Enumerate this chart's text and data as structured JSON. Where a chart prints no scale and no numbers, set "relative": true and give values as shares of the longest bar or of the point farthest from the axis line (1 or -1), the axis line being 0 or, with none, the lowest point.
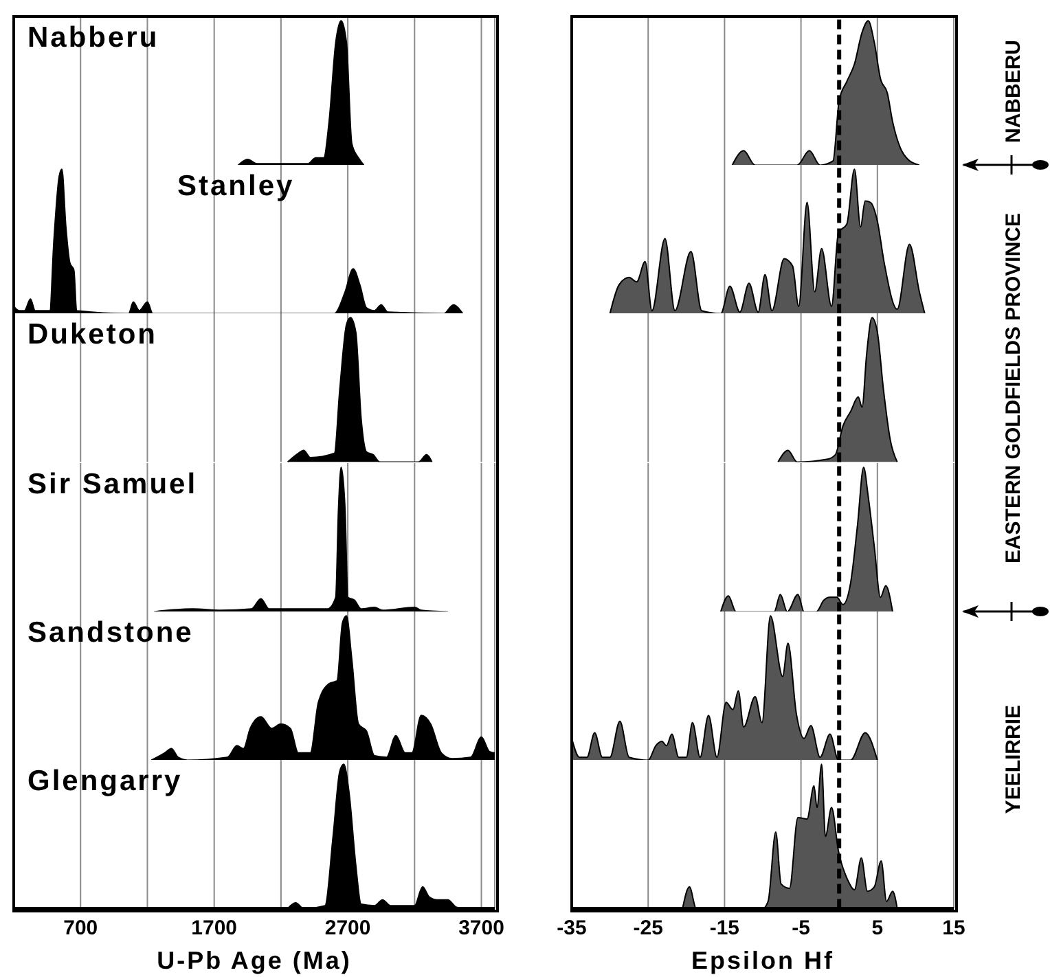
{
  "chart_data": [
    {
      "type": "area",
      "title": "Nabberu",
      "color": "#000000",
      "relative": true,
      "xlim": [
        200,
        3800
      ],
      "xticks": [
        700,
        {
          "value": 1200,
          "label": null
        },
        1700,
        {
          "value": 2200,
          "label": null
        },
        2700,
        {
          "value": 3200,
          "label": null
        },
        3700
      ],
      "grid": "x",
      "tick_labels": false,
      "x": [
        1880,
        1950,
        2020,
        2400,
        2460,
        2520,
        2560,
        2610,
        2650,
        2690,
        2730,
        2780,
        2820
      ],
      "values": [
        0,
        0.04,
        0.01,
        0.01,
        0.05,
        0.05,
        0.3,
        0.85,
        1,
        0.85,
        0.15,
        0.05,
        0
      ]
    },
    {
      "type": "area",
      "color": "#555555",
      "relative": true,
      "xlim": [
        -35,
        15
      ],
      "xticks": [
        -35,
        -25,
        -15,
        -5,
        5,
        15
      ],
      "grid": "x",
      "tick_labels": false,
      "ref_lines": [
        {
          "axis": "x",
          "value": 0,
          "color": "#000000",
          "line_style": "dashed"
        }
      ],
      "annotations": [
        "NABBERU"
      ],
      "x": [
        -14,
        -12.5,
        -11,
        -5.5,
        -3.9,
        -2.5,
        -0.8,
        0,
        1,
        2,
        3,
        3.8,
        4.6,
        5.4,
        6.3,
        7,
        8,
        9,
        10.5
      ],
      "values": [
        0,
        0.1,
        0,
        0,
        0.1,
        0,
        0.03,
        0.45,
        0.58,
        0.7,
        0.92,
        1,
        0.85,
        0.6,
        0.5,
        0.3,
        0.12,
        0.04,
        0
      ]
    },
    {
      "type": "area",
      "title": "Stanley",
      "color": "#000000",
      "relative": true,
      "xlim": [
        200,
        3800
      ],
      "xticks": [
        700,
        {
          "value": 1200,
          "label": null
        },
        1700,
        {
          "value": 2200,
          "label": null
        },
        2700,
        {
          "value": 3200,
          "label": null
        },
        3700
      ],
      "grid": "x",
      "tick_labels": false,
      "x": [
        200,
        240,
        280,
        325,
        360,
        470,
        500,
        540,
        560,
        590,
        620,
        650,
        670,
        1060,
        1095,
        1140,
        1200,
        1240,
        2600,
        2680,
        2740,
        2790,
        2840,
        2900,
        2950,
        3000,
        3420,
        3490,
        3560
      ],
      "values": [
        0.05,
        0.02,
        0.02,
        0.1,
        0.02,
        0.02,
        0.5,
        0.95,
        1,
        0.6,
        0.35,
        0.3,
        0.02,
        0,
        0.08,
        0.02,
        0.08,
        0,
        0,
        0.15,
        0.31,
        0.2,
        0.04,
        0.02,
        0.06,
        0.01,
        0,
        0.06,
        0
      ]
    },
    {
      "type": "area",
      "color": "#555555",
      "relative": true,
      "xlim": [
        -35,
        15
      ],
      "xticks": [
        -35,
        -25,
        -15,
        -5,
        5,
        15
      ],
      "grid": "x",
      "tick_labels": false,
      "ref_lines": [
        {
          "axis": "x",
          "value": 0,
          "color": "#000000",
          "line_style": "dashed"
        }
      ],
      "annotations": [
        "EASTERN GOLDFIELDS PROVINCE"
      ],
      "x": [
        -30,
        -28.8,
        -27.5,
        -26.5,
        -25.4,
        -24.5,
        -22.8,
        -21.5,
        -19.4,
        -18,
        -15.5,
        -14.3,
        -13,
        -11.8,
        -10.6,
        -9.7,
        -8.8,
        -7.2,
        -6.1,
        -5.3,
        -4.2,
        -3.2,
        -2.3,
        -1,
        -0.1,
        1,
        2,
        2.8,
        3.4,
        4.1,
        5,
        5.9,
        7.6,
        9.2,
        10.5,
        11.2
      ],
      "values": [
        0,
        0.2,
        0.25,
        0.22,
        0.36,
        0.02,
        0.52,
        0.02,
        0.43,
        0.02,
        0,
        0.19,
        0.01,
        0.21,
        0.01,
        0.27,
        0.02,
        0.38,
        0.33,
        0.05,
        0.77,
        0.15,
        0.45,
        0.05,
        0.56,
        0.62,
        1,
        0.6,
        0.78,
        0.77,
        0.64,
        0.35,
        0.03,
        0.48,
        0.15,
        0
      ]
    },
    {
      "type": "area",
      "title": "Duketon",
      "color": "#000000",
      "relative": true,
      "xlim": [
        200,
        3800
      ],
      "xticks": [
        700,
        {
          "value": 1200,
          "label": null
        },
        1700,
        {
          "value": 2200,
          "label": null
        },
        2700,
        {
          "value": 3200,
          "label": null
        },
        3700
      ],
      "grid": "x",
      "tick_labels": false,
      "x": [
        2250,
        2330,
        2370,
        2420,
        2600,
        2640,
        2690,
        2720,
        2760,
        2800,
        2840,
        2890,
        2940,
        3230,
        3290,
        3330
      ],
      "values": [
        0,
        0.06,
        0.08,
        0.03,
        0.06,
        0.5,
        0.95,
        1,
        0.9,
        0.3,
        0.07,
        0.05,
        0,
        0,
        0.05,
        0
      ]
    },
    {
      "type": "area",
      "color": "#555555",
      "relative": true,
      "xlim": [
        -35,
        15
      ],
      "xticks": [
        -35,
        -25,
        -15,
        -5,
        5,
        15
      ],
      "grid": "x",
      "tick_labels": false,
      "ref_lines": [
        {
          "axis": "x",
          "value": 0,
          "color": "#000000",
          "line_style": "dashed"
        }
      ],
      "x": [
        -8,
        -6.7,
        -5.5,
        -1.5,
        -0.5,
        0.5,
        1.5,
        2.5,
        3,
        3.6,
        4.3,
        5,
        5.8,
        6.7,
        7.6
      ],
      "values": [
        0,
        0.08,
        0,
        0.02,
        0.05,
        0.25,
        0.35,
        0.45,
        0.38,
        0.75,
        1,
        0.9,
        0.5,
        0.15,
        0
      ]
    },
    {
      "type": "area",
      "title": "Sir Samuel",
      "color": "#000000",
      "relative": true,
      "xlim": [
        200,
        3800
      ],
      "xticks": [
        700,
        {
          "value": 1200,
          "label": null
        },
        1700,
        {
          "value": 2200,
          "label": null
        },
        2700,
        {
          "value": 3200,
          "label": null
        },
        3700
      ],
      "grid": "x",
      "tick_labels": false,
      "x": [
        1250,
        1540,
        1750,
        1980,
        2050,
        2110,
        2550,
        2610,
        2630,
        2650,
        2680,
        2700,
        2750,
        2800,
        2900,
        2960,
        3200,
        3250,
        3450
      ],
      "values": [
        0,
        0.02,
        0.01,
        0.02,
        0.09,
        0.02,
        0.02,
        0.1,
        0.7,
        1,
        0.7,
        0.1,
        0.08,
        0.02,
        0.03,
        0.01,
        0.03,
        0.01,
        0
      ]
    },
    {
      "type": "area",
      "color": "#555555",
      "relative": true,
      "xlim": [
        -35,
        15
      ],
      "xticks": [
        -35,
        -25,
        -15,
        -5,
        5,
        15
      ],
      "grid": "x",
      "tick_labels": false,
      "ref_lines": [
        {
          "axis": "x",
          "value": 0,
          "color": "#000000",
          "line_style": "dashed"
        }
      ],
      "x": [
        -15.5,
        -14.5,
        -13.5,
        -8.5,
        -7.7,
        -6.8,
        -5.4,
        -4.6,
        -3,
        -2,
        -1.2,
        -0.3,
        0.5,
        1.5,
        2.4,
        3.2,
        3.8,
        4.6,
        5.4,
        6.1,
        7
      ],
      "values": [
        0,
        0.11,
        0,
        0,
        0.12,
        0,
        0.12,
        0,
        0,
        0.08,
        0.1,
        0.1,
        0.05,
        0.2,
        0.6,
        1,
        0.8,
        0.45,
        0.1,
        0.18,
        0
      ]
    },
    {
      "type": "area",
      "title": "Sandstone",
      "color": "#000000",
      "relative": true,
      "xlim": [
        200,
        3800
      ],
      "xticks": [
        700,
        {
          "value": 1200,
          "label": null
        },
        1700,
        {
          "value": 2200,
          "label": null
        },
        2700,
        {
          "value": 3200,
          "label": null
        },
        3700
      ],
      "grid": "x",
      "tick_labels": false,
      "x": [
        1230,
        1330,
        1380,
        1430,
        1500,
        1800,
        1870,
        1920,
        1970,
        2050,
        2130,
        2200,
        2270,
        2330,
        2420,
        2480,
        2560,
        2620,
        2660,
        2690,
        2730,
        2780,
        2840,
        2900,
        2990,
        3060,
        3130,
        3180,
        3250,
        3320,
        3400,
        3480,
        3620,
        3700,
        3760,
        3800
      ],
      "values": [
        0,
        0.05,
        0.08,
        0.02,
        0,
        0.02,
        0.1,
        0.08,
        0.22,
        0.3,
        0.22,
        0.25,
        0.22,
        0.05,
        0.05,
        0.4,
        0.53,
        0.55,
        0.95,
        1,
        0.7,
        0.25,
        0.2,
        0.03,
        0.02,
        0.17,
        0.05,
        0.05,
        0.31,
        0.25,
        0.05,
        0.01,
        0.02,
        0.16,
        0.06,
        0.05
      ]
    },
    {
      "type": "area",
      "color": "#555555",
      "relative": true,
      "xlim": [
        -35,
        15
      ],
      "xticks": [
        -35,
        -25,
        -15,
        -5,
        5,
        15
      ],
      "grid": "x",
      "tick_labels": false,
      "ref_lines": [
        {
          "axis": "x",
          "value": 0,
          "color": "#000000",
          "line_style": "dashed"
        }
      ],
      "annotations": [
        "YEELIRRIE"
      ],
      "x": [
        -35,
        -34,
        -33,
        -32,
        -31,
        -30,
        -28.7,
        -27.5,
        -25,
        -24,
        -23.2,
        -22.6,
        -21.9,
        -21,
        -20,
        -19.2,
        -18.2,
        -17.1,
        -16,
        -14.8,
        -13.9,
        -13.2,
        -12.5,
        -11,
        -10.1,
        -9,
        -7.4,
        -6.7,
        -5.6,
        -4.6,
        -3.7,
        -2.5,
        -1.2,
        -0.1,
        1.5,
        3.4,
        5
      ],
      "values": [
        0.15,
        0.02,
        0.02,
        0.19,
        0.02,
        0.02,
        0.27,
        0.02,
        0,
        0.1,
        0.13,
        0.1,
        0.18,
        0.02,
        0.02,
        0.26,
        0.02,
        0.31,
        0.02,
        0.4,
        0.35,
        0.48,
        0.23,
        0.44,
        0.26,
        1,
        0.58,
        0.81,
        0.32,
        0.15,
        0.24,
        0.02,
        0.18,
        0,
        0,
        0.19,
        0
      ]
    },
    {
      "type": "area",
      "title": "Glengarry",
      "xlabel": "U-Pb Age (Ma)",
      "color": "#000000",
      "relative": true,
      "xlim": [
        200,
        3800
      ],
      "xticks": [
        700,
        {
          "value": 1200,
          "label": null
        },
        1700,
        {
          "value": 2200,
          "label": null
        },
        2700,
        {
          "value": 3200,
          "label": null
        },
        3700
      ],
      "grid": "x",
      "tick_labels": "x",
      "x": [
        2250,
        2310,
        2370,
        2530,
        2590,
        2640,
        2670,
        2710,
        2760,
        2800,
        2900,
        2960,
        3020,
        3200,
        3260,
        3310,
        3370,
        3450,
        3510,
        3560
      ],
      "values": [
        0,
        0.04,
        0,
        0.02,
        0.5,
        0.95,
        1,
        0.8,
        0.3,
        0.03,
        0.02,
        0.06,
        0.02,
        0.02,
        0.15,
        0.08,
        0.06,
        0.06,
        0.01,
        0
      ]
    },
    {
      "type": "area",
      "xlabel": "Epsilon Hf",
      "color": "#555555",
      "relative": true,
      "xlim": [
        -35,
        15
      ],
      "xticks": [
        -35,
        -25,
        -15,
        -5,
        5,
        15
      ],
      "grid": "x",
      "tick_labels": "x",
      "ref_lines": [
        {
          "axis": "x",
          "value": 0,
          "color": "#000000",
          "line_style": "dashed"
        }
      ],
      "x": [
        -20.5,
        -19.6,
        -18.7,
        -10,
        -9.3,
        -8.3,
        -7.6,
        -6.5,
        -5.4,
        -4.2,
        -3.3,
        -2.9,
        -2.3,
        -1.8,
        -1,
        -0.1,
        1.1,
        2,
        2.9,
        3.7,
        4.6,
        5.5,
        6.2,
        7,
        7.6
      ],
      "values": [
        0,
        0.15,
        0,
        0,
        0.05,
        0.53,
        0.17,
        0.14,
        0.63,
        0.62,
        0.85,
        0.7,
        1,
        0.5,
        0.7,
        0.4,
        0.2,
        0.13,
        0.35,
        0.12,
        0.15,
        0.33,
        0.05,
        0.12,
        0
      ]
    }
  ]
}
